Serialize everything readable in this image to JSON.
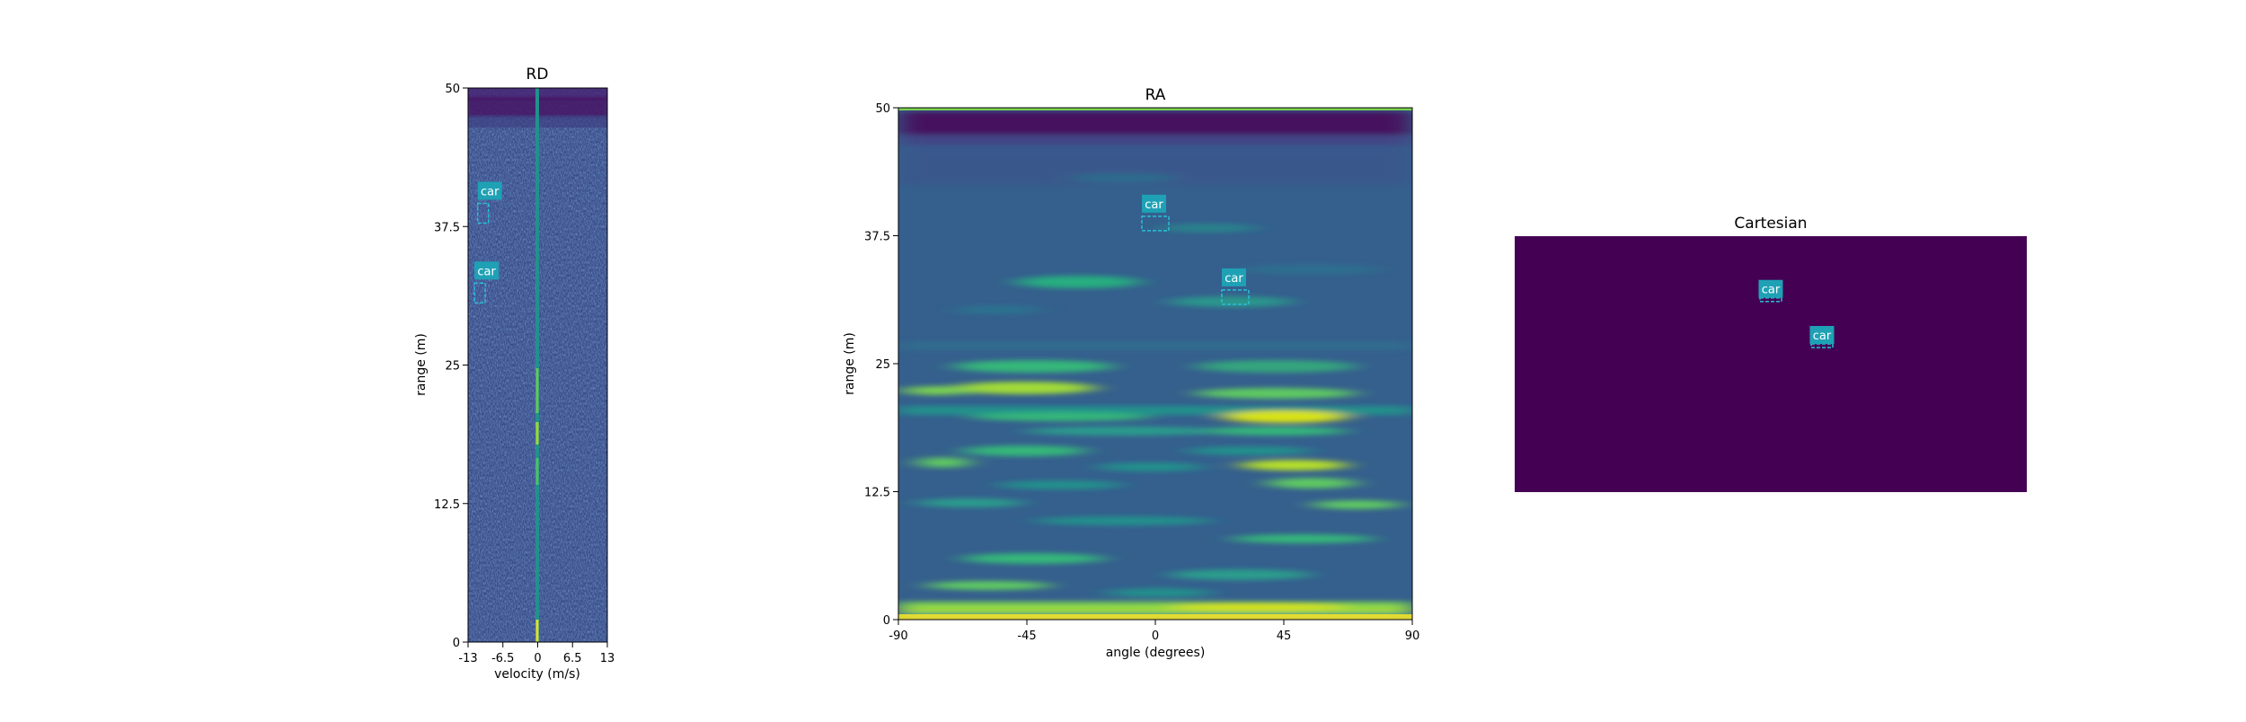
{
  "chart_data": [
    {
      "type": "heatmap",
      "title": "RD",
      "xlabel": "velocity (m/s)",
      "ylabel": "range (m)",
      "xlim": [
        -13,
        13
      ],
      "ylim": [
        0,
        50
      ],
      "x_ticks": [
        "-13",
        "-6.5",
        "0",
        "6.5",
        "13"
      ],
      "y_ticks": [
        "0",
        "12.5",
        "25",
        "37.5",
        "50"
      ],
      "annotations": [
        {
          "label": "car",
          "x": -10.2,
          "y": 38.7
        },
        {
          "label": "car",
          "x": -10.8,
          "y": 31.5
        }
      ]
    },
    {
      "type": "heatmap",
      "title": "RA",
      "xlabel": "angle (degrees)",
      "ylabel": "range (m)",
      "xlim": [
        -90,
        90
      ],
      "ylim": [
        0,
        50
      ],
      "x_ticks": [
        "-90",
        "-45",
        "0",
        "45",
        "90"
      ],
      "y_ticks": [
        "0",
        "12.5",
        "25",
        "37.5",
        "50"
      ],
      "annotations": [
        {
          "label": "car",
          "x": 0,
          "y": 38.7
        },
        {
          "label": "car",
          "x": 28,
          "y": 31.5
        }
      ]
    },
    {
      "type": "heatmap",
      "title": "Cartesian",
      "annotations": [
        {
          "label": "car",
          "x": 0.5,
          "y": 0.78
        },
        {
          "label": "car",
          "x": 0.6,
          "y": 0.6
        }
      ]
    }
  ],
  "colors": {
    "background_dark": "#440154",
    "mid": "#3b528b",
    "teal": "#21918c",
    "green": "#5ec962",
    "yellow": "#fde725",
    "label_box": "#1fa1b5",
    "box_line": "#28c0d8"
  }
}
